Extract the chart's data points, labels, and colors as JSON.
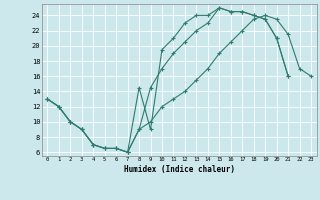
{
  "xlabel": "Humidex (Indice chaleur)",
  "xlim": [
    -0.5,
    23.5
  ],
  "ylim": [
    5.5,
    25.5
  ],
  "xticks": [
    0,
    1,
    2,
    3,
    4,
    5,
    6,
    7,
    8,
    9,
    10,
    11,
    12,
    13,
    14,
    15,
    16,
    17,
    18,
    19,
    20,
    21,
    22,
    23
  ],
  "yticks": [
    6,
    8,
    10,
    12,
    14,
    16,
    18,
    20,
    22,
    24
  ],
  "line_color": "#2e7d6e",
  "bg_color": "#cde8ec",
  "grid_color": "#ffffff",
  "line1_x": [
    0,
    1,
    2,
    3,
    4,
    5,
    6,
    7,
    8,
    9,
    10,
    11,
    12,
    13,
    14,
    15,
    16,
    17,
    18,
    19,
    20,
    21
  ],
  "line1_y": [
    13,
    12,
    10,
    9,
    7,
    6.5,
    6.5,
    6,
    14.5,
    9.0,
    19.5,
    21,
    23,
    24,
    24,
    25,
    24.5,
    24.5,
    24.0,
    23.5,
    21.0,
    16.0
  ],
  "line2_x": [
    0,
    1,
    2,
    3,
    4,
    5,
    6,
    7,
    8,
    9,
    10,
    11,
    12,
    13,
    14,
    15,
    16,
    17,
    18,
    19,
    20,
    21
  ],
  "line2_y": [
    13,
    12,
    10,
    9,
    7,
    6.5,
    6.5,
    6,
    9.0,
    14.5,
    17.0,
    19.0,
    20.5,
    22.0,
    23.0,
    25.0,
    24.5,
    24.5,
    24.0,
    23.5,
    21.0,
    16.0
  ],
  "line3_x": [
    0,
    1,
    2,
    3,
    4,
    5,
    6,
    7,
    8,
    9,
    10,
    11,
    12,
    13,
    14,
    15,
    16,
    17,
    18,
    19,
    20,
    21,
    22,
    23
  ],
  "line3_y": [
    13,
    12,
    10,
    9,
    7,
    6.5,
    6.5,
    6,
    9.0,
    10.0,
    12.0,
    13.0,
    14.0,
    15.5,
    17.0,
    19.0,
    20.5,
    22.0,
    23.5,
    24.0,
    23.5,
    21.5,
    17.0,
    16.0
  ]
}
